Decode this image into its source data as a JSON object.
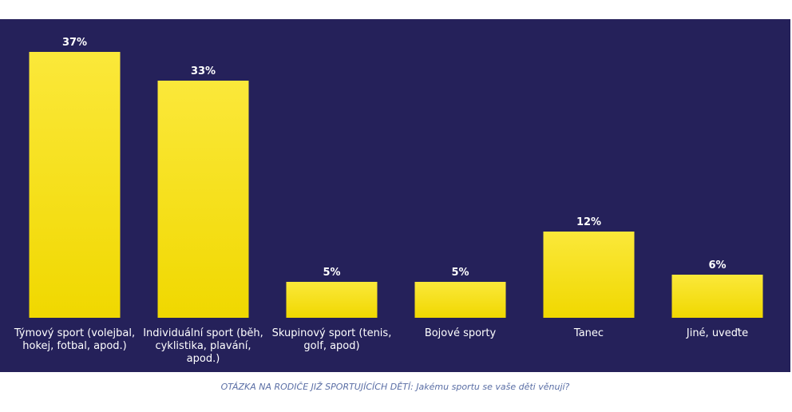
{
  "chart_data": {
    "type": "bar",
    "categories": [
      [
        "Týmový sport (volejbal,",
        "hokej, fotbal, apod.)"
      ],
      [
        "Individuální sport (běh,",
        "cyklistika, plavání,",
        "apod.)"
      ],
      [
        "Skupinový sport (tenis,",
        "golf, apod)"
      ],
      [
        "Bojové sporty"
      ],
      [
        "Tanec"
      ],
      [
        "Jiné, uveďte"
      ]
    ],
    "values": [
      37,
      33,
      5,
      5,
      12,
      6
    ],
    "value_labels": [
      "37%",
      "33%",
      "5%",
      "5%",
      "12%",
      "6%"
    ],
    "ylim": [
      0,
      37
    ],
    "grid": false,
    "colors": {
      "background": "#25215a",
      "bar_top": "#fbe83a",
      "bar_bottom": "#f0d800",
      "text": "#ffffff"
    }
  },
  "caption": {
    "prefix": "OTÁZKA NA RODIČE JIŽ SPORTUJÍCÍCH DĚTÍ: ",
    "question": "Jakému sportu se vaše děti věnují?"
  }
}
